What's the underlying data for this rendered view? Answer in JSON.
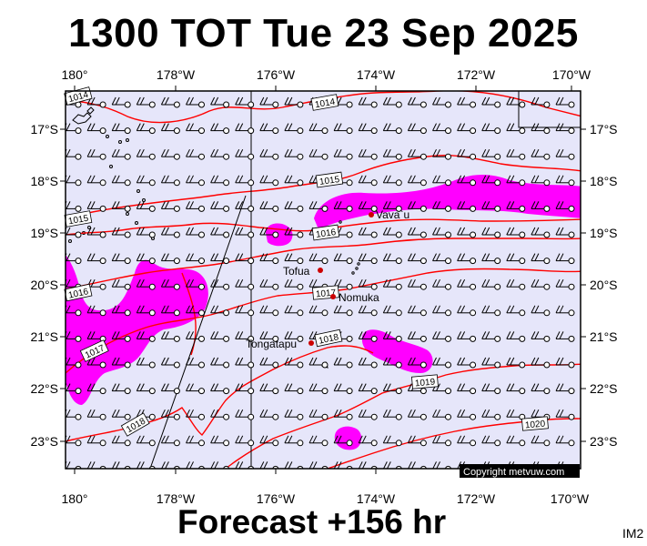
{
  "title": "1300 TOT Tue 23 Sep 2025",
  "footer": "Forecast +156 hr",
  "image_code": "IM2",
  "copyright": "Copyright metvuw.com",
  "colors": {
    "background": "#e6e6fa",
    "rain": "#ff00ff",
    "isobar": "#ff0000",
    "place_marker": "#cc0000"
  },
  "map": {
    "lon_labels_top": [
      "180°",
      "178°W",
      "176°W",
      "174°W",
      "172°W",
      "170°W"
    ],
    "lon_labels_bottom": [
      "180°",
      "178°W",
      "176°W",
      "174°W",
      "172°W",
      "170°W"
    ],
    "lat_labels_left": [
      "17°S",
      "18°S",
      "19°S",
      "20°S",
      "21°S",
      "22°S",
      "23°S"
    ],
    "lat_labels_right": [
      "17°S",
      "18°S",
      "19°S",
      "20°S",
      "21°S",
      "22°S",
      "23°S"
    ],
    "places": [
      "Vava`u",
      "Tofua",
      "Nomuka",
      "Tongatapu"
    ],
    "isobar_labels": [
      "1014",
      "1014",
      "1015",
      "1015",
      "1016",
      "1016",
      "1017",
      "1017",
      "1018",
      "1018",
      "1019",
      "1020"
    ]
  }
}
